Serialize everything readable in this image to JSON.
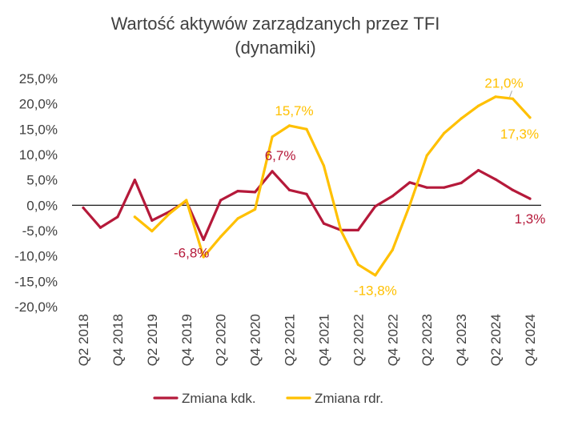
{
  "chart_data": {
    "type": "line",
    "title_lines": [
      "Wartość aktywów zarządzanych przez TFI",
      "(dynamiki)"
    ],
    "xlabel": "",
    "ylabel": "",
    "ylim": [
      -20,
      25
    ],
    "y_ticks": [
      25,
      20,
      15,
      10,
      5,
      0,
      -5,
      -10,
      -15,
      -20
    ],
    "y_tick_labels": [
      "25,0%",
      "20,0%",
      "15,0%",
      "10,0%",
      "5,0%",
      "0,0%",
      "-5,0%",
      "-10,0%",
      "-15,0%",
      "-20,0%"
    ],
    "categories": [
      "Q2 2018",
      "Q3 2018",
      "Q4 2018",
      "Q1 2019",
      "Q2 2019",
      "Q3 2019",
      "Q4 2019",
      "Q1 2020",
      "Q2 2020",
      "Q3 2020",
      "Q4 2020",
      "Q1 2021",
      "Q2 2021",
      "Q3 2021",
      "Q4 2021",
      "Q1 2022",
      "Q2 2022",
      "Q3 2022",
      "Q4 2022",
      "Q1 2023",
      "Q2 2023",
      "Q3 2023",
      "Q4 2023",
      "Q1 2024",
      "Q2 2024",
      "Q3 2024",
      "Q4 2024"
    ],
    "x_tick_labels": [
      "Q2 2018",
      "",
      "Q4 2018",
      "",
      "Q2 2019",
      "",
      "Q4 2019",
      "",
      "Q2 2020",
      "",
      "Q4 2020",
      "",
      "Q2 2021",
      "",
      "Q4 2021",
      "",
      "Q2 2022",
      "",
      "Q4 2022",
      "",
      "Q2 2023",
      "",
      "Q4 2023",
      "",
      "Q2 2024",
      "",
      "Q4 2024"
    ],
    "grid": false,
    "legend_position": "bottom",
    "series": [
      {
        "name": "Zmiana kdk.",
        "color": "#B5193A",
        "values": [
          -0.5,
          -4.4,
          -2.3,
          5.0,
          -3.0,
          -1.3,
          0.8,
          -6.8,
          1.0,
          2.8,
          2.6,
          6.7,
          3.0,
          2.2,
          -3.6,
          -4.9,
          -4.9,
          -0.2,
          1.8,
          4.5,
          3.5,
          3.5,
          4.4,
          6.9,
          5.1,
          3.0,
          1.3
        ]
      },
      {
        "name": "Zmiana rdr.",
        "color": "#FFC000",
        "values": [
          null,
          null,
          null,
          -2.3,
          -5.1,
          -1.7,
          1.0,
          -10.2,
          -6.2,
          -2.6,
          -0.8,
          13.5,
          15.7,
          15.0,
          7.8,
          -5.0,
          -11.7,
          -13.8,
          -8.8,
          0.0,
          9.8,
          14.2,
          17.1,
          19.6,
          21.4,
          21.0,
          17.3
        ]
      }
    ],
    "annotations": [
      {
        "series": 0,
        "index": 7,
        "text": "-6,8%"
      },
      {
        "series": 0,
        "index": 11,
        "text": "6,7%"
      },
      {
        "series": 0,
        "index": 26,
        "text": "1,3%"
      },
      {
        "series": 1,
        "index": 12,
        "text": "15,7%"
      },
      {
        "series": 1,
        "index": 17,
        "text": "-13,8%"
      },
      {
        "series": 1,
        "index": 25,
        "text": "21,0%"
      },
      {
        "series": 1,
        "index": 26,
        "text": "17,3%"
      }
    ]
  }
}
